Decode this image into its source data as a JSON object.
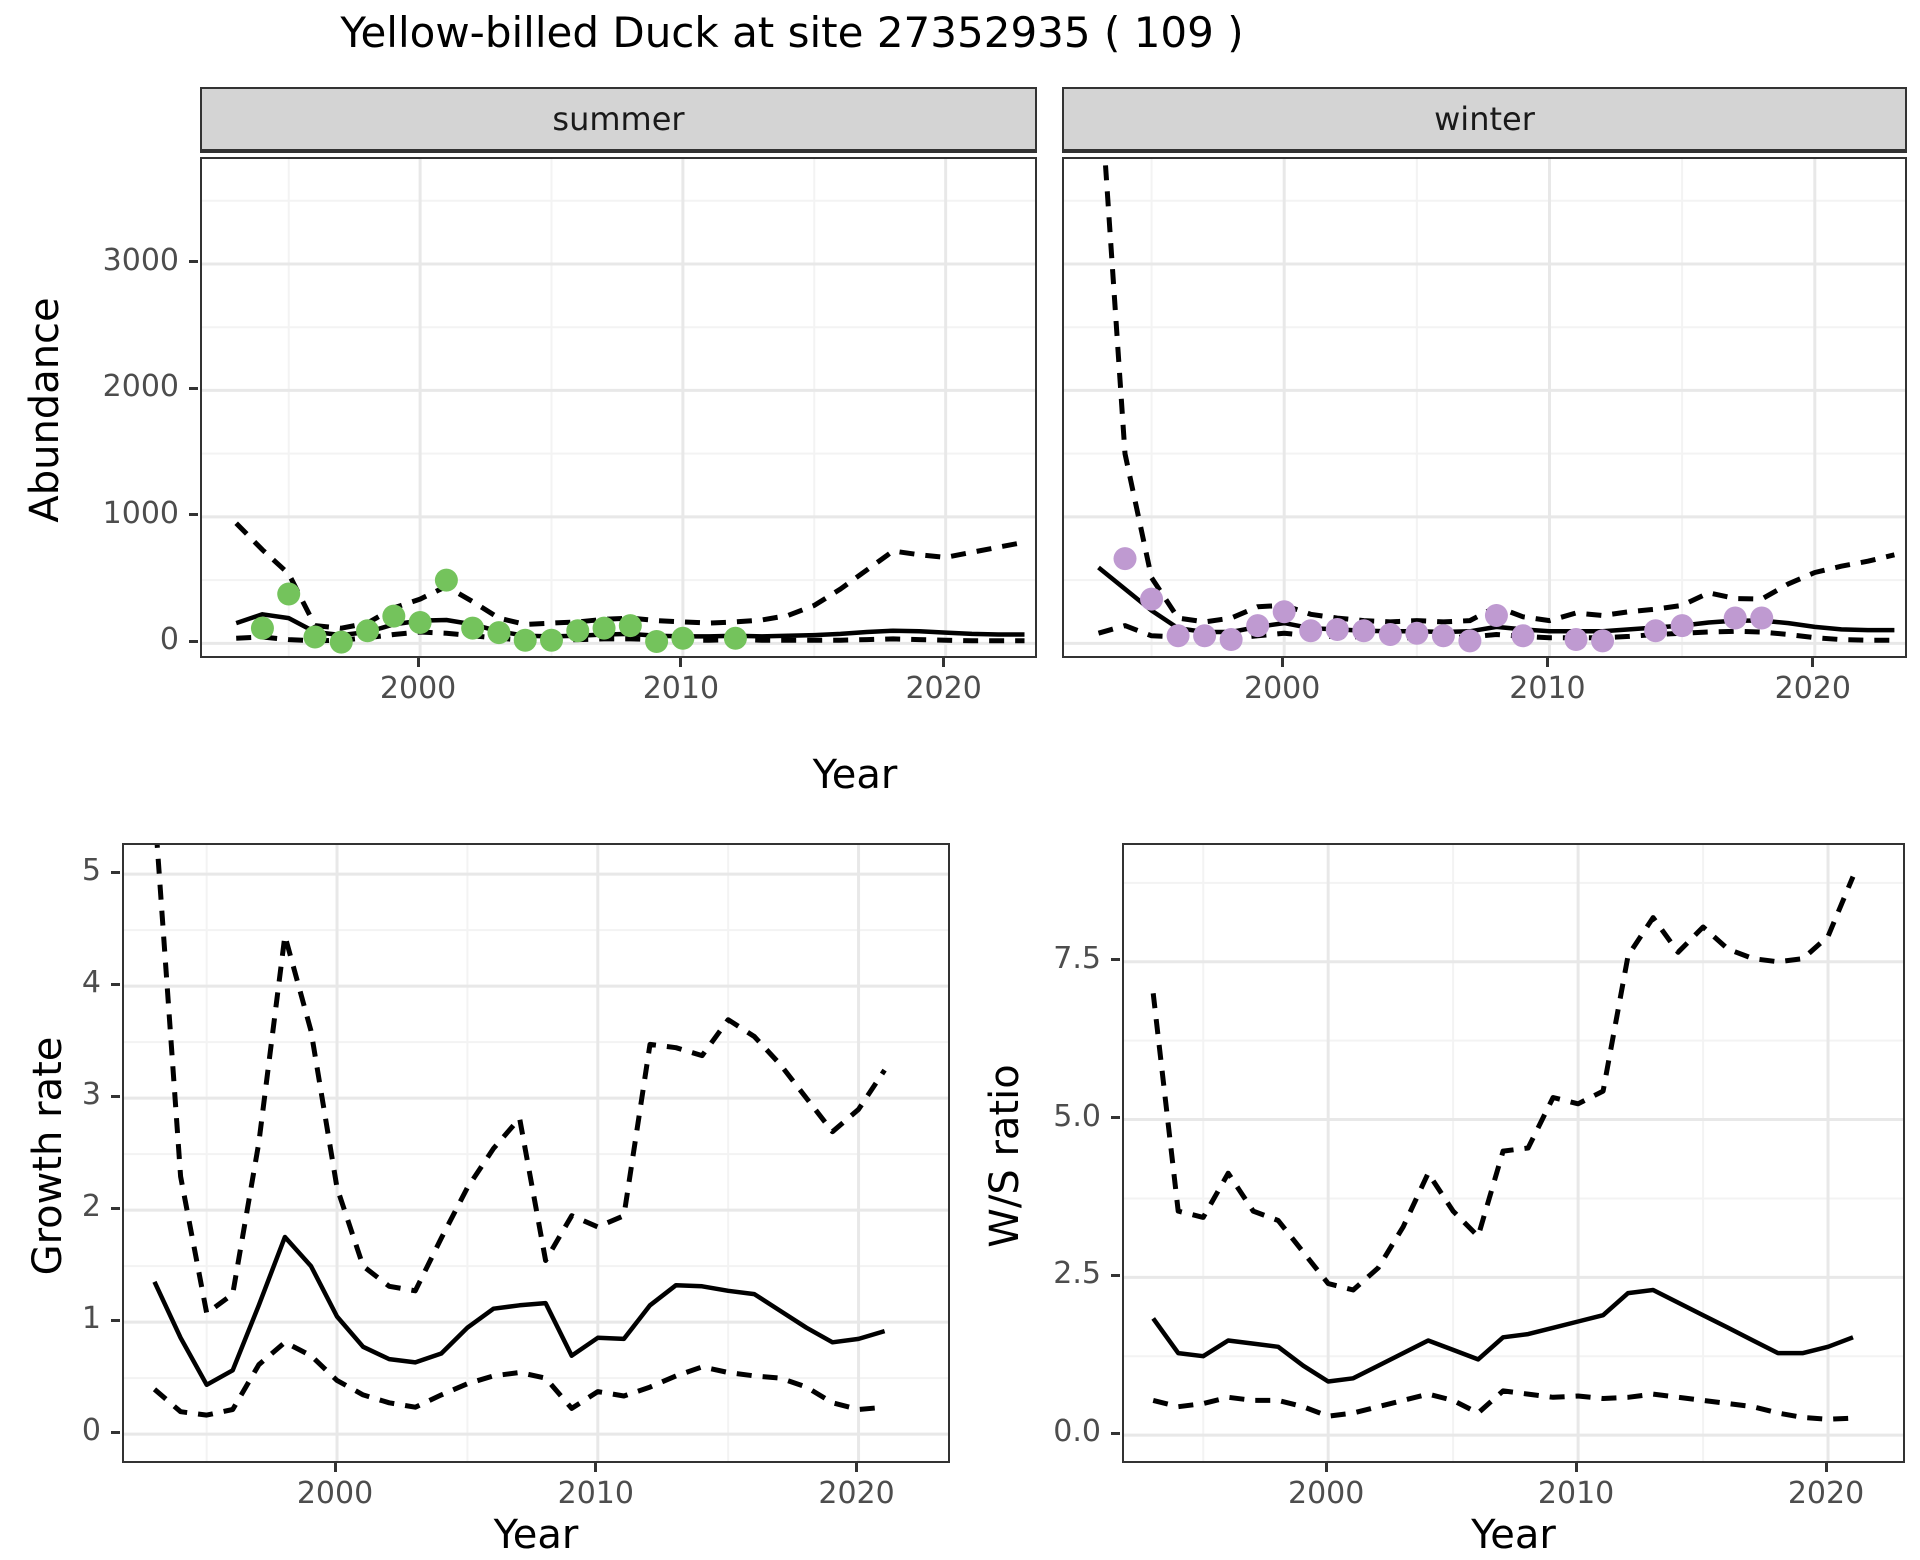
{
  "title": "Yellow-billed Duck at site 27352935 ( 109 )",
  "colors": {
    "summer_points": "#74c35c",
    "winter_points": "#bf9ad1",
    "line": "#000000",
    "strip_bg": "#d4d4d4",
    "grid_major": "#e8e8e8",
    "grid_minor": "#f3f3f3",
    "tick_text": "#4d4d4d"
  },
  "chart_data": [
    {
      "id": "abundance",
      "type": "line",
      "xlabel": "Year",
      "ylabel": "Abundance",
      "facets": [
        "summer",
        "winter"
      ],
      "xticks": [
        2000,
        2010,
        2020
      ],
      "xminor": [
        1995,
        2005,
        2015
      ],
      "yticks": [
        0,
        1000,
        2000,
        3000
      ],
      "yminor": [
        500,
        1500,
        2500,
        3500
      ],
      "xlim": [
        1991.7,
        2023.4
      ],
      "ylim": [
        -100,
        3830
      ],
      "grid": true,
      "legend": "none",
      "x": [
        1993,
        1994,
        1995,
        1996,
        1997,
        1998,
        1999,
        2000,
        2001,
        2002,
        2003,
        2004,
        2005,
        2006,
        2007,
        2008,
        2009,
        2010,
        2011,
        2012,
        2013,
        2014,
        2015,
        2016,
        2017,
        2018,
        2019,
        2020,
        2021,
        2022,
        2023
      ],
      "series": [
        {
          "name": "summer-estimate",
          "facet": "summer",
          "style": "solid",
          "values": [
            160,
            230,
            200,
            90,
            65,
            90,
            150,
            180,
            185,
            150,
            95,
            60,
            55,
            60,
            70,
            75,
            60,
            55,
            55,
            60,
            55,
            60,
            65,
            75,
            90,
            100,
            95,
            85,
            75,
            70,
            70
          ]
        },
        {
          "name": "summer-upper-ci",
          "facet": "summer",
          "style": "dashed",
          "values": [
            950,
            740,
            550,
            140,
            120,
            160,
            280,
            350,
            450,
            330,
            200,
            150,
            160,
            170,
            190,
            200,
            180,
            170,
            160,
            170,
            185,
            220,
            300,
            430,
            580,
            730,
            700,
            680,
            720,
            760,
            800
          ]
        },
        {
          "name": "summer-lower-ci",
          "facet": "summer",
          "style": "dashed",
          "values": [
            40,
            50,
            30,
            20,
            25,
            45,
            70,
            90,
            80,
            60,
            40,
            25,
            25,
            30,
            35,
            35,
            30,
            25,
            25,
            30,
            25,
            25,
            25,
            25,
            30,
            35,
            30,
            25,
            20,
            20,
            20
          ]
        },
        {
          "name": "summer-observed-counts",
          "facet": "summer",
          "style": "points",
          "color": "#74c35c",
          "x": [
            1994,
            1995,
            1996,
            1997,
            1998,
            1999,
            2000,
            2001,
            2002,
            2003,
            2004,
            2005,
            2006,
            2007,
            2008,
            2009,
            2010,
            2012
          ],
          "values": [
            120,
            390,
            50,
            10,
            100,
            215,
            165,
            500,
            120,
            85,
            25,
            25,
            100,
            120,
            140,
            15,
            40,
            40
          ]
        },
        {
          "name": "winter-estimate",
          "facet": "winter",
          "style": "solid",
          "values": [
            600,
            430,
            260,
            120,
            90,
            90,
            130,
            160,
            120,
            110,
            100,
            95,
            95,
            90,
            95,
            130,
            110,
            95,
            95,
            95,
            110,
            125,
            140,
            165,
            180,
            180,
            160,
            130,
            110,
            105,
            105
          ]
        },
        {
          "name": "winter-upper-ci",
          "facet": "winter",
          "style": "dashed",
          "values": [
            4600,
            1500,
            520,
            200,
            170,
            200,
            290,
            300,
            230,
            200,
            180,
            170,
            180,
            170,
            180,
            290,
            210,
            180,
            240,
            220,
            250,
            270,
            300,
            400,
            355,
            350,
            470,
            560,
            610,
            650,
            700
          ]
        },
        {
          "name": "winter-lower-ci",
          "facet": "winter",
          "style": "dashed",
          "values": [
            80,
            140,
            60,
            50,
            45,
            40,
            60,
            80,
            60,
            55,
            50,
            45,
            45,
            45,
            50,
            70,
            55,
            45,
            45,
            45,
            55,
            70,
            80,
            90,
            95,
            90,
            70,
            45,
            30,
            25,
            25
          ]
        },
        {
          "name": "winter-observed-counts",
          "facet": "winter",
          "style": "points",
          "color": "#bf9ad1",
          "x": [
            1994,
            1995,
            1996,
            1997,
            1998,
            1999,
            2000,
            2001,
            2002,
            2003,
            2004,
            2005,
            2006,
            2007,
            2008,
            2009,
            2011,
            2012,
            2014,
            2015,
            2017,
            2018
          ],
          "values": [
            670,
            350,
            60,
            60,
            30,
            140,
            250,
            100,
            110,
            100,
            70,
            80,
            60,
            20,
            220,
            60,
            30,
            20,
            100,
            140,
            200,
            200
          ]
        }
      ]
    },
    {
      "id": "growth-rate",
      "type": "line",
      "xlabel": "Year",
      "ylabel": "Growth rate",
      "xticks": [
        2000,
        2010,
        2020
      ],
      "xminor": [
        1995,
        2005,
        2015
      ],
      "yticks": [
        0,
        1,
        2,
        3,
        4,
        5
      ],
      "yminor": [
        0.5,
        1.5,
        2.5,
        3.5,
        4.5
      ],
      "xlim": [
        1991.83,
        2023.43
      ],
      "ylim": [
        -0.24,
        5.26
      ],
      "grid": true,
      "legend": "none",
      "x": [
        1993,
        1994,
        1995,
        1996,
        1997,
        1998,
        1999,
        2000,
        2001,
        2002,
        2003,
        2004,
        2005,
        2006,
        2007,
        2008,
        2009,
        2010,
        2011,
        2012,
        2013,
        2014,
        2015,
        2016,
        2017,
        2018,
        2019,
        2020,
        2021
      ],
      "series": [
        {
          "name": "growth-estimate",
          "style": "solid",
          "values": [
            1.36,
            0.86,
            0.44,
            0.57,
            1.15,
            1.76,
            1.5,
            1.05,
            0.78,
            0.67,
            0.64,
            0.72,
            0.95,
            1.12,
            1.15,
            1.17,
            0.7,
            0.86,
            0.85,
            1.15,
            1.33,
            1.32,
            1.28,
            1.25,
            1.1,
            0.95,
            0.82,
            0.85,
            0.92
          ]
        },
        {
          "name": "growth-upper-ci",
          "style": "dashed",
          "values": [
            5.6,
            2.3,
            1.08,
            1.25,
            2.6,
            4.45,
            3.6,
            2.2,
            1.5,
            1.32,
            1.28,
            1.75,
            2.2,
            2.55,
            2.82,
            1.55,
            1.95,
            1.85,
            1.95,
            3.48,
            3.45,
            3.38,
            3.7,
            3.55,
            3.3,
            3.0,
            2.7,
            2.9,
            3.25
          ]
        },
        {
          "name": "growth-lower-ci",
          "style": "dashed",
          "values": [
            0.4,
            0.2,
            0.17,
            0.22,
            0.62,
            0.82,
            0.7,
            0.48,
            0.35,
            0.28,
            0.24,
            0.35,
            0.45,
            0.52,
            0.55,
            0.5,
            0.23,
            0.38,
            0.34,
            0.42,
            0.52,
            0.6,
            0.55,
            0.52,
            0.5,
            0.42,
            0.28,
            0.22,
            0.24
          ]
        }
      ]
    },
    {
      "id": "ws-ratio",
      "type": "line",
      "xlabel": "Year",
      "ylabel": "W/S ratio",
      "xticks": [
        2000,
        2010,
        2020
      ],
      "xminor": [
        1995,
        2005,
        2015
      ],
      "yticks": [
        0.0,
        2.5,
        5.0,
        7.5
      ],
      "ytick_labels": [
        "0.0",
        "2.5",
        "5.0",
        "7.5"
      ],
      "yminor": [
        1.25,
        3.75,
        6.25,
        8.75
      ],
      "xlim": [
        1991.83,
        2023.0
      ],
      "ylim": [
        -0.41,
        9.35
      ],
      "grid": true,
      "legend": "none",
      "x": [
        1993,
        1994,
        1995,
        1996,
        1997,
        1998,
        1999,
        2000,
        2001,
        2002,
        2003,
        2004,
        2005,
        2006,
        2007,
        2008,
        2009,
        2010,
        2011,
        2012,
        2013,
        2014,
        2015,
        2016,
        2017,
        2018,
        2019,
        2020,
        2021
      ],
      "series": [
        {
          "name": "ws-estimate",
          "style": "solid",
          "values": [
            1.85,
            1.3,
            1.25,
            1.5,
            1.45,
            1.4,
            1.1,
            0.85,
            0.9,
            1.1,
            1.3,
            1.5,
            1.35,
            1.2,
            1.55,
            1.6,
            1.7,
            1.8,
            1.9,
            2.25,
            2.3,
            2.1,
            1.9,
            1.7,
            1.5,
            1.3,
            1.3,
            1.4,
            1.55
          ]
        },
        {
          "name": "ws-upper-ci",
          "style": "dashed",
          "values": [
            7.0,
            3.55,
            3.45,
            4.15,
            3.55,
            3.4,
            2.9,
            2.4,
            2.3,
            2.65,
            3.3,
            4.15,
            3.55,
            3.15,
            4.5,
            4.55,
            5.35,
            5.25,
            5.45,
            7.6,
            8.2,
            7.65,
            8.05,
            7.7,
            7.55,
            7.5,
            7.55,
            7.9,
            8.85
          ]
        },
        {
          "name": "ws-lower-ci",
          "style": "dashed",
          "values": [
            0.55,
            0.45,
            0.5,
            0.6,
            0.55,
            0.55,
            0.45,
            0.3,
            0.35,
            0.45,
            0.55,
            0.65,
            0.55,
            0.35,
            0.7,
            0.65,
            0.6,
            0.62,
            0.58,
            0.6,
            0.65,
            0.6,
            0.55,
            0.5,
            0.45,
            0.35,
            0.28,
            0.25,
            0.27
          ]
        }
      ]
    }
  ]
}
